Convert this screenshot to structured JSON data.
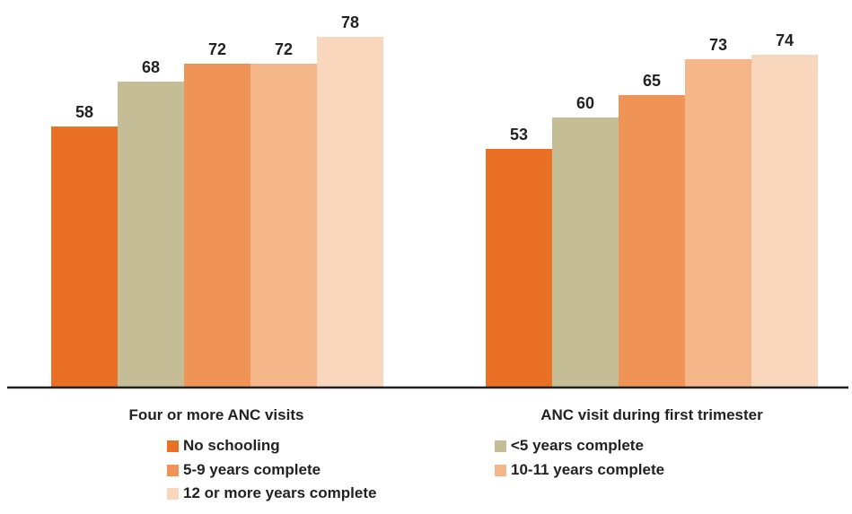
{
  "chart_data": {
    "type": "bar",
    "categories": [
      "Four or more ANC visits",
      "ANC visit during first trimester"
    ],
    "series": [
      {
        "name": "No schooling",
        "color": "#e97025",
        "values": [
          58,
          53
        ]
      },
      {
        "name": "<5 years complete",
        "color": "#c5bd96",
        "values": [
          68,
          60
        ]
      },
      {
        "name": "5-9 years complete",
        "color": "#ef9456",
        "values": [
          72,
          65
        ]
      },
      {
        "name": "10-11 years complete",
        "color": "#f5b689",
        "values": [
          72,
          73
        ]
      },
      {
        "name": "12 or more years complete",
        "color": "#f9d7bd",
        "values": [
          78,
          74
        ]
      }
    ],
    "ylim": [
      0,
      100
    ],
    "data_labels": true,
    "grid": false,
    "legend_position": "bottom"
  }
}
